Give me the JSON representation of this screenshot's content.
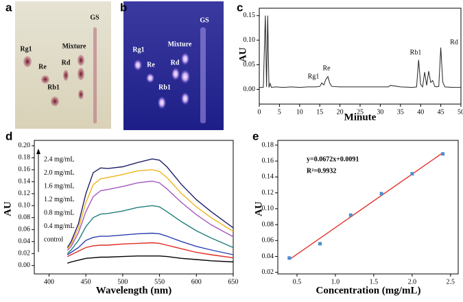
{
  "photos": [
    {
      "panel": "a",
      "labels": [
        "Rg1",
        "Re",
        "Rb1",
        "Mixture",
        "Rd",
        "GS"
      ]
    },
    {
      "panel": "b",
      "labels": [
        "Rg1",
        "Re",
        "Rb1",
        "Mixture",
        "Rd",
        "GS"
      ]
    }
  ],
  "chart_data": [
    {
      "type": "line",
      "panel": "c",
      "xlabel": "Minute",
      "ylabel": "AU",
      "x": [
        0,
        1,
        1.5,
        1.8,
        2.1,
        2.4,
        2.7,
        3,
        4,
        6,
        8,
        10,
        12,
        14,
        15,
        15.5,
        16,
        16.5,
        17,
        17.5,
        18,
        20,
        25,
        30,
        32,
        32.5,
        35,
        38,
        39,
        39.5,
        40,
        40.5,
        41,
        41.5,
        42,
        42.5,
        43,
        43.5,
        44,
        44.5,
        45,
        45.5,
        46,
        48,
        50
      ],
      "series": [
        {
          "color": "#222222",
          "values": [
            0.004,
            0.004,
            0.15,
            0.005,
            0.15,
            0.004,
            0.012,
            0.004,
            0.005,
            0.004,
            0.005,
            0.004,
            0.005,
            0.005,
            0.006,
            0.013,
            0.009,
            0.02,
            0.026,
            0.012,
            0.006,
            0.005,
            0.005,
            0.005,
            0.005,
            0.008,
            0.005,
            0.004,
            0.005,
            0.06,
            0.01,
            0.005,
            0.035,
            0.008,
            0.037,
            0.014,
            0.018,
            0.006,
            0.005,
            0.006,
            0.085,
            0.015,
            0.005,
            0.004,
            0.004
          ]
        }
      ],
      "xlim": [
        0,
        50
      ],
      "xticks": [
        0,
        5,
        10,
        15,
        20,
        25,
        30,
        35,
        40,
        45,
        50
      ],
      "ylim": [
        -0.03,
        0.165
      ],
      "yticks": [
        {
          "value": 0,
          "label": "0.00"
        },
        {
          "value": 0.05,
          "label": "0.05"
        },
        {
          "value": 0.1,
          "label": "0.10"
        },
        {
          "value": 0.15,
          "label": "0.15"
        }
      ],
      "annotations": [
        "Rg1",
        "Re",
        "Rb1",
        "Rd"
      ]
    },
    {
      "type": "line",
      "panel": "d",
      "xlabel": "Wavelength (nm)",
      "ylabel": "AU",
      "x": [
        425,
        430,
        440,
        450,
        460,
        470,
        480,
        500,
        520,
        540,
        550,
        560,
        580,
        600,
        620,
        650
      ],
      "series": [
        {
          "name": "2.4 mg/mL",
          "color": "#1c1f66",
          "values": [
            0.03,
            0.04,
            0.07,
            0.12,
            0.155,
            0.163,
            0.162,
            0.165,
            0.172,
            0.178,
            0.176,
            0.165,
            0.135,
            0.11,
            0.09,
            0.063
          ]
        },
        {
          "name": "2.0 mg/mL",
          "color": "#f0b418",
          "values": [
            0.028,
            0.036,
            0.062,
            0.105,
            0.135,
            0.145,
            0.147,
            0.152,
            0.158,
            0.16,
            0.157,
            0.147,
            0.12,
            0.098,
            0.08,
            0.057
          ]
        },
        {
          "name": "1.6 mg/mL",
          "color": "#a456c0",
          "values": [
            0.025,
            0.032,
            0.055,
            0.09,
            0.115,
            0.125,
            0.127,
            0.132,
            0.138,
            0.141,
            0.138,
            0.128,
            0.105,
            0.085,
            0.068,
            0.048
          ]
        },
        {
          "name": "1.2 mg/mL",
          "color": "#1d7f7a",
          "values": [
            0.02,
            0.026,
            0.042,
            0.065,
            0.08,
            0.086,
            0.087,
            0.091,
            0.097,
            0.1,
            0.098,
            0.09,
            0.073,
            0.058,
            0.046,
            0.03
          ]
        },
        {
          "name": "0.8 mg/mL",
          "color": "#2a3fb0",
          "values": [
            0.018,
            0.022,
            0.03,
            0.042,
            0.047,
            0.049,
            0.049,
            0.051,
            0.053,
            0.054,
            0.053,
            0.049,
            0.04,
            0.032,
            0.026,
            0.018
          ]
        },
        {
          "name": "0.4 mg/mL",
          "color": "#e02a20",
          "values": [
            0.015,
            0.018,
            0.024,
            0.03,
            0.033,
            0.034,
            0.034,
            0.036,
            0.037,
            0.038,
            0.037,
            0.034,
            0.028,
            0.022,
            0.018,
            0.013
          ]
        },
        {
          "name": "control",
          "color": "#000000",
          "values": [
            0.004,
            0.006,
            0.009,
            0.012,
            0.013,
            0.014,
            0.014,
            0.015,
            0.016,
            0.016,
            0.016,
            0.015,
            0.012,
            0.01,
            0.008,
            0.006
          ]
        }
      ],
      "xlim": [
        380,
        650
      ],
      "xticks": [
        400,
        450,
        500,
        550,
        600,
        650
      ],
      "ylim": [
        -0.014,
        0.209
      ],
      "yticks": [
        {
          "value": 0,
          "label": "0.00"
        },
        {
          "value": 0.02,
          "label": "0.02"
        },
        {
          "value": 0.04,
          "label": "0.04"
        },
        {
          "value": 0.06,
          "label": "0.06"
        },
        {
          "value": 0.08,
          "label": "0.08"
        },
        {
          "value": 0.1,
          "label": "0.10"
        },
        {
          "value": 0.12,
          "label": "0.12"
        },
        {
          "value": 0.14,
          "label": "0.14"
        },
        {
          "value": 0.16,
          "label": "0.16"
        },
        {
          "value": 0.18,
          "label": "0.18"
        },
        {
          "value": 0.2,
          "label": "0.20"
        }
      ]
    },
    {
      "type": "scatter",
      "panel": "e",
      "xlabel": "Concentration (mg/mL)",
      "ylabel": "AU",
      "x": [
        0.4,
        0.8,
        1.2,
        1.6,
        2.0,
        2.4
      ],
      "values": [
        0.038,
        0.056,
        0.092,
        0.119,
        0.144,
        0.169
      ],
      "color": "#4a90d0",
      "fit": {
        "x": [
          0.4,
          2.4
        ],
        "values": [
          0.036,
          0.1704
        ],
        "color": "#e0302a"
      },
      "xlim": [
        0.25,
        2.6
      ],
      "xticks": [
        0.5,
        {
          "value": 1,
          "label": "1.0"
        },
        1.5,
        {
          "value": 2,
          "label": "2.0"
        },
        2.5
      ],
      "ylim": [
        0.018,
        0.186
      ],
      "yticks": [
        0.02,
        0.04,
        0.06,
        0.08,
        {
          "value": 0.1,
          "label": "0.10"
        },
        0.12,
        0.14,
        0.16,
        0.18
      ],
      "annotations": [
        "y=0.0672x+0.0091",
        "R²=0.9932"
      ]
    }
  ]
}
